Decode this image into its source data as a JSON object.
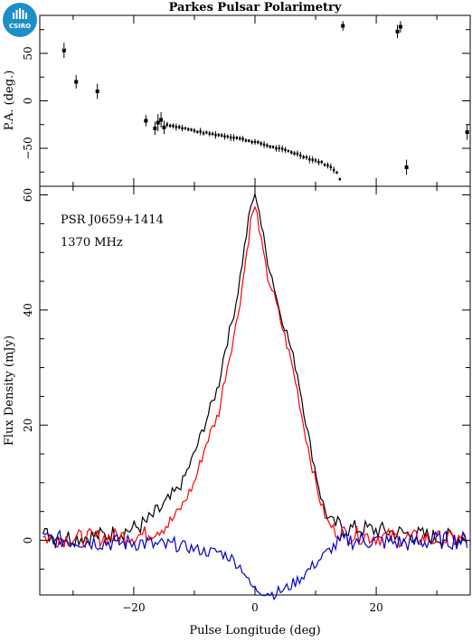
{
  "logo": {
    "text": "CSIRO",
    "color": "#1e8fc6"
  },
  "chart_data": [
    {
      "panel": "top",
      "type": "scatter",
      "title": "Parkes Pulsar Polarimetry",
      "ylabel": "P.A. (deg.)",
      "xlim": [
        -35.5,
        35.5
      ],
      "ylim": [
        -90,
        90
      ],
      "yticks": [
        -50,
        0,
        50
      ],
      "error_bars": true,
      "points": [
        {
          "x": -31.5,
          "y": 53,
          "err": 8
        },
        {
          "x": -29.5,
          "y": 20,
          "err": 7
        },
        {
          "x": -26.0,
          "y": 10,
          "err": 8
        },
        {
          "x": -18.0,
          "y": -21,
          "err": 6
        },
        {
          "x": -16.5,
          "y": -29,
          "err": 7
        },
        {
          "x": -16.0,
          "y": -23,
          "err": 9
        },
        {
          "x": -15.5,
          "y": -20,
          "err": 8
        },
        {
          "x": -15.0,
          "y": -28,
          "err": 7
        },
        {
          "x": 14.5,
          "y": 79,
          "err": 5
        },
        {
          "x": 23.5,
          "y": 73,
          "err": 7
        },
        {
          "x": 24.0,
          "y": 78,
          "err": 6
        },
        {
          "x": 25.0,
          "y": -70,
          "err": 8
        },
        {
          "x": 35.0,
          "y": -33,
          "err": 8
        }
      ],
      "trend": [
        {
          "x": -14.5,
          "y": -25
        },
        {
          "x": -13.0,
          "y": -27
        },
        {
          "x": -11.0,
          "y": -30
        },
        {
          "x": -9.0,
          "y": -33
        },
        {
          "x": -7.0,
          "y": -35
        },
        {
          "x": -5.0,
          "y": -37
        },
        {
          "x": -3.0,
          "y": -39
        },
        {
          "x": -1.0,
          "y": -42
        },
        {
          "x": 1.0,
          "y": -45
        },
        {
          "x": 3.0,
          "y": -49
        },
        {
          "x": 5.0,
          "y": -52
        },
        {
          "x": 7.0,
          "y": -56
        },
        {
          "x": 9.0,
          "y": -61
        },
        {
          "x": 11.0,
          "y": -65
        },
        {
          "x": 12.5,
          "y": -70
        },
        {
          "x": 13.5,
          "y": -75
        },
        {
          "x": 14.3,
          "y": -86
        }
      ]
    },
    {
      "panel": "bottom",
      "type": "line",
      "annotations": [
        "PSR J0659+1414",
        "1370 MHz"
      ],
      "xlabel": "Pulse Longitude (deg)",
      "ylabel": "Flux Density (mJy)",
      "xlim": [
        -35.5,
        35.5
      ],
      "ylim": [
        -9.5,
        61.5
      ],
      "xticks": [
        -20,
        0,
        20
      ],
      "yticks": [
        0,
        20,
        40,
        60
      ],
      "series": [
        {
          "color": "#000000",
          "points": [
            [
              -35,
              1
            ],
            [
              -30,
              0.5
            ],
            [
              -25,
              0.8
            ],
            [
              -22,
              1.5
            ],
            [
              -20,
              2
            ],
            [
              -18,
              3
            ],
            [
              -16,
              5
            ],
            [
              -14,
              7
            ],
            [
              -12,
              10
            ],
            [
              -10,
              15
            ],
            [
              -8,
              21
            ],
            [
              -6,
              27
            ],
            [
              -5,
              33
            ],
            [
              -4,
              37
            ],
            [
              -3,
              42
            ],
            [
              -2,
              49
            ],
            [
              -1,
              56
            ],
            [
              -0.5,
              59
            ],
            [
              0,
              59.5
            ],
            [
              0.5,
              59
            ],
            [
              1,
              55
            ],
            [
              2,
              49
            ],
            [
              3,
              45
            ],
            [
              4,
              40
            ],
            [
              5,
              37
            ],
            [
              6,
              33
            ],
            [
              7,
              29
            ],
            [
              8,
              23
            ],
            [
              9,
              17
            ],
            [
              10,
              12
            ],
            [
              11,
              7
            ],
            [
              12,
              4
            ],
            [
              13,
              3
            ],
            [
              15,
              2
            ],
            [
              18,
              2
            ],
            [
              22,
              1.5
            ],
            [
              26,
              1
            ],
            [
              30,
              0.5
            ],
            [
              35,
              0.5
            ]
          ]
        },
        {
          "color": "#ff0000",
          "points": [
            [
              -35,
              0.5
            ],
            [
              -30,
              0.3
            ],
            [
              -25,
              0.5
            ],
            [
              -22,
              0.7
            ],
            [
              -20,
              0.8
            ],
            [
              -18,
              1
            ],
            [
              -16,
              2
            ],
            [
              -14,
              3
            ],
            [
              -12,
              6
            ],
            [
              -10,
              10
            ],
            [
              -8,
              17
            ],
            [
              -6,
              22
            ],
            [
              -5,
              28
            ],
            [
              -4,
              33
            ],
            [
              -3,
              38
            ],
            [
              -2,
              45
            ],
            [
              -1,
              53
            ],
            [
              -0.5,
              57
            ],
            [
              0,
              57.5
            ],
            [
              0.5,
              56
            ],
            [
              1,
              52
            ],
            [
              2,
              46
            ],
            [
              3,
              43
            ],
            [
              4,
              39
            ],
            [
              5,
              35
            ],
            [
              6,
              31
            ],
            [
              7,
              26
            ],
            [
              8,
              20
            ],
            [
              9,
              15
            ],
            [
              10,
              10
            ],
            [
              11,
              6
            ],
            [
              12,
              3
            ],
            [
              13,
              2
            ],
            [
              15,
              1
            ],
            [
              18,
              0.8
            ],
            [
              22,
              0.5
            ],
            [
              26,
              0.3
            ],
            [
              30,
              0.2
            ],
            [
              35,
              0.2
            ]
          ]
        },
        {
          "color": "#0000cc",
          "points": [
            [
              -35,
              0.2
            ],
            [
              -30,
              0
            ],
            [
              -25,
              -0.3
            ],
            [
              -22,
              -0.5
            ],
            [
              -20,
              -0.3
            ],
            [
              -18,
              -0.5
            ],
            [
              -16,
              -1
            ],
            [
              -14,
              -1
            ],
            [
              -12,
              -1
            ],
            [
              -10,
              -1.5
            ],
            [
              -8,
              -2
            ],
            [
              -6,
              -2
            ],
            [
              -5,
              -2.5
            ],
            [
              -4,
              -3
            ],
            [
              -3,
              -4
            ],
            [
              -2,
              -5
            ],
            [
              -1.5,
              -6
            ],
            [
              -1,
              -7.5
            ],
            [
              0,
              -8.5
            ],
            [
              2,
              -9
            ],
            [
              3,
              -9.3
            ],
            [
              5,
              -8.5
            ],
            [
              7,
              -7
            ],
            [
              9,
              -5
            ],
            [
              11,
              -3
            ],
            [
              13,
              -1
            ],
            [
              15,
              0
            ],
            [
              18,
              0
            ],
            [
              22,
              -0.3
            ],
            [
              26,
              -0.5
            ],
            [
              30,
              0
            ],
            [
              35,
              0
            ]
          ]
        }
      ]
    }
  ]
}
